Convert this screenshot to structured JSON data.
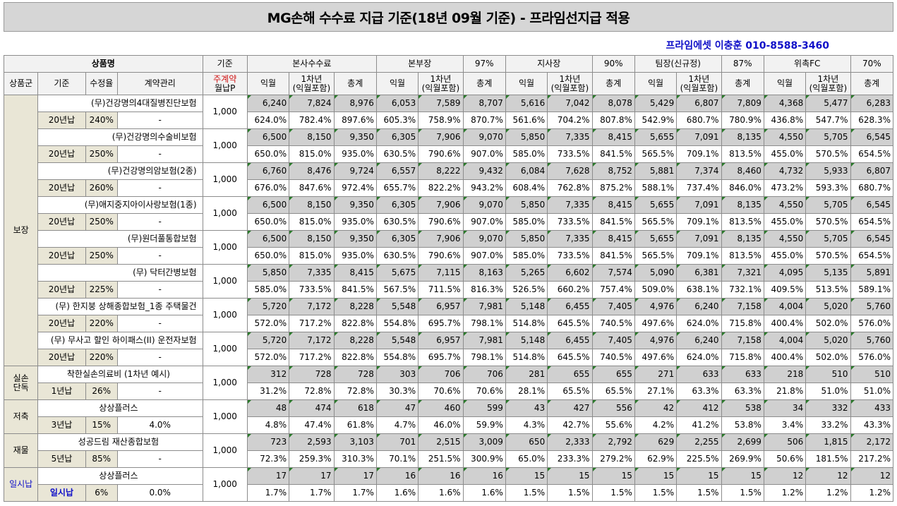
{
  "title": "MG손해 수수료 지급 기준(18년 09월 기준) - 프라임선지급 적용",
  "contact": "프라임에셋 이충훈 010-8588-3460",
  "header": {
    "product_name": "상품명",
    "basis": "기준",
    "hq": "본사수수료",
    "div": "본부장",
    "div_pct": "97%",
    "branch": "지사장",
    "branch_pct": "90%",
    "team": "팀장(신규정)",
    "team_pct": "87%",
    "fc": "위촉FC",
    "fc_pct": "70%",
    "group": "상품군",
    "standard": "기준",
    "rate": "수정율",
    "contract": "계약관리",
    "weekly": "주계약",
    "monthly_p": "월납P",
    "next_month": "익월",
    "first_year": "1차년",
    "incl": "(익월포함)",
    "total": "총계"
  },
  "groups": [
    {
      "name": "보장",
      "name_color": "#000000",
      "products": [
        {
          "name": "(무)건강명의4대질병진단보험",
          "align": "right",
          "term": "20년납",
          "rate": "240%",
          "mgmt": "-",
          "base": "1,000",
          "amounts": [
            "6,240",
            "7,824",
            "8,976",
            "6,053",
            "7,589",
            "8,707",
            "5,616",
            "7,042",
            "8,078",
            "5,429",
            "6,807",
            "7,809",
            "4,368",
            "5,477",
            "6,283"
          ],
          "pcts": [
            "624.0%",
            "782.4%",
            "897.6%",
            "605.3%",
            "758.9%",
            "870.7%",
            "561.6%",
            "704.2%",
            "807.8%",
            "542.9%",
            "680.7%",
            "780.9%",
            "436.8%",
            "547.7%",
            "628.3%"
          ]
        },
        {
          "name": "(무)건강명의수술비보험",
          "align": "right",
          "term": "20년납",
          "rate": "250%",
          "mgmt": "-",
          "base": "1,000",
          "amounts": [
            "6,500",
            "8,150",
            "9,350",
            "6,305",
            "7,906",
            "9,070",
            "5,850",
            "7,335",
            "8,415",
            "5,655",
            "7,091",
            "8,135",
            "4,550",
            "5,705",
            "6,545"
          ],
          "pcts": [
            "650.0%",
            "815.0%",
            "935.0%",
            "630.5%",
            "790.6%",
            "907.0%",
            "585.0%",
            "733.5%",
            "841.5%",
            "565.5%",
            "709.1%",
            "813.5%",
            "455.0%",
            "570.5%",
            "654.5%"
          ]
        },
        {
          "name": "(무)건강명의암보험(2종)",
          "align": "right",
          "term": "20년납",
          "rate": "260%",
          "mgmt": "-",
          "base": "1,000",
          "amounts": [
            "6,760",
            "8,476",
            "9,724",
            "6,557",
            "8,222",
            "9,432",
            "6,084",
            "7,628",
            "8,752",
            "5,881",
            "7,374",
            "8,460",
            "4,732",
            "5,933",
            "6,807"
          ],
          "pcts": [
            "676.0%",
            "847.6%",
            "972.4%",
            "655.7%",
            "822.2%",
            "943.2%",
            "608.4%",
            "762.8%",
            "875.2%",
            "588.1%",
            "737.4%",
            "846.0%",
            "473.2%",
            "593.3%",
            "680.7%"
          ]
        },
        {
          "name": "(무)애지중지아이사랑보험(1종)",
          "align": "right",
          "term": "20년납",
          "rate": "250%",
          "mgmt": "-",
          "base": "1,000",
          "amounts": [
            "6,500",
            "8,150",
            "9,350",
            "6,305",
            "7,906",
            "9,070",
            "5,850",
            "7,335",
            "8,415",
            "5,655",
            "7,091",
            "8,135",
            "4,550",
            "5,705",
            "6,545"
          ],
          "pcts": [
            "650.0%",
            "815.0%",
            "935.0%",
            "630.5%",
            "790.6%",
            "907.0%",
            "585.0%",
            "733.5%",
            "841.5%",
            "565.5%",
            "709.1%",
            "813.5%",
            "455.0%",
            "570.5%",
            "654.5%"
          ]
        },
        {
          "name": "(무)원더풀통합보험",
          "align": "right",
          "term": "20년납",
          "rate": "250%",
          "mgmt": "-",
          "base": "1,000",
          "amounts": [
            "6,500",
            "8,150",
            "9,350",
            "6,305",
            "7,906",
            "9,070",
            "5,850",
            "7,335",
            "8,415",
            "5,655",
            "7,091",
            "8,135",
            "4,550",
            "5,705",
            "6,545"
          ],
          "pcts": [
            "650.0%",
            "815.0%",
            "935.0%",
            "630.5%",
            "790.6%",
            "907.0%",
            "585.0%",
            "733.5%",
            "841.5%",
            "565.5%",
            "709.1%",
            "813.5%",
            "455.0%",
            "570.5%",
            "654.5%"
          ]
        },
        {
          "name": "(무) 닥터간병보험",
          "align": "right",
          "term": "20년납",
          "rate": "225%",
          "mgmt": "-",
          "base": "1,000",
          "amounts": [
            "5,850",
            "7,335",
            "8,415",
            "5,675",
            "7,115",
            "8,163",
            "5,265",
            "6,602",
            "7,574",
            "5,090",
            "6,381",
            "7,321",
            "4,095",
            "5,135",
            "5,891"
          ],
          "pcts": [
            "585.0%",
            "733.5%",
            "841.5%",
            "567.5%",
            "711.5%",
            "816.3%",
            "526.5%",
            "660.2%",
            "757.4%",
            "509.0%",
            "638.1%",
            "732.1%",
            "409.5%",
            "513.5%",
            "589.1%"
          ]
        },
        {
          "name": "(무) 한지붕 상해종합보험_1종 주택물건",
          "align": "right",
          "term": "20년납",
          "rate": "220%",
          "mgmt": "-",
          "base": "1,000",
          "amounts": [
            "5,720",
            "7,172",
            "8,228",
            "5,548",
            "6,957",
            "7,981",
            "5,148",
            "6,455",
            "7,405",
            "4,976",
            "6,240",
            "7,158",
            "4,004",
            "5,020",
            "5,760"
          ],
          "pcts": [
            "572.0%",
            "717.2%",
            "822.8%",
            "554.8%",
            "695.7%",
            "798.1%",
            "514.8%",
            "645.5%",
            "740.5%",
            "497.6%",
            "624.0%",
            "715.8%",
            "400.4%",
            "502.0%",
            "576.0%"
          ]
        },
        {
          "name": "(무) 무사고 할인 하이패스(II) 운전자보험",
          "align": "right",
          "term": "20년납",
          "rate": "220%",
          "mgmt": "-",
          "base": "1,000",
          "amounts": [
            "5,720",
            "7,172",
            "8,228",
            "5,548",
            "6,957",
            "7,981",
            "5,148",
            "6,455",
            "7,405",
            "4,976",
            "6,240",
            "7,158",
            "4,004",
            "5,020",
            "5,760"
          ],
          "pcts": [
            "572.0%",
            "717.2%",
            "822.8%",
            "554.8%",
            "695.7%",
            "798.1%",
            "514.8%",
            "645.5%",
            "740.5%",
            "497.6%",
            "624.0%",
            "715.8%",
            "400.4%",
            "502.0%",
            "576.0%"
          ]
        }
      ]
    },
    {
      "name": "실손\n단독",
      "name_color": "#000000",
      "products": [
        {
          "name": "착한실손의료비 (1차년 예시)",
          "align": "center",
          "term": "1년납",
          "rate": "26%",
          "mgmt": "-",
          "base": "1,000",
          "amounts": [
            "312",
            "728",
            "728",
            "303",
            "706",
            "706",
            "281",
            "655",
            "655",
            "271",
            "633",
            "633",
            "218",
            "510",
            "510"
          ],
          "pcts": [
            "31.2%",
            "72.8%",
            "72.8%",
            "30.3%",
            "70.6%",
            "70.6%",
            "28.1%",
            "65.5%",
            "65.5%",
            "27.1%",
            "63.3%",
            "63.3%",
            "21.8%",
            "51.0%",
            "51.0%"
          ]
        }
      ]
    },
    {
      "name": "저축",
      "name_color": "#000000",
      "products": [
        {
          "name": "상상플러스",
          "align": "center",
          "term": "3년납",
          "rate": "15%",
          "mgmt": "4.0%",
          "base": "1,000",
          "amounts": [
            "48",
            "474",
            "618",
            "47",
            "460",
            "599",
            "43",
            "427",
            "556",
            "42",
            "412",
            "538",
            "34",
            "332",
            "433"
          ],
          "pcts": [
            "4.8%",
            "47.4%",
            "61.8%",
            "4.7%",
            "46.0%",
            "59.9%",
            "4.3%",
            "42.7%",
            "55.6%",
            "4.2%",
            "41.2%",
            "53.8%",
            "3.4%",
            "33.2%",
            "43.3%"
          ]
        }
      ]
    },
    {
      "name": "재물",
      "name_color": "#000000",
      "products": [
        {
          "name": "성공드림 재산종합보험",
          "align": "center",
          "term": "5년납",
          "rate": "85%",
          "mgmt": "-",
          "base": "1,000",
          "amounts": [
            "723",
            "2,593",
            "3,103",
            "701",
            "2,515",
            "3,009",
            "650",
            "2,333",
            "2,792",
            "629",
            "2,255",
            "2,699",
            "506",
            "1,815",
            "2,172"
          ],
          "pcts": [
            "72.3%",
            "259.3%",
            "310.3%",
            "70.1%",
            "251.5%",
            "300.9%",
            "65.0%",
            "233.3%",
            "279.2%",
            "62.9%",
            "225.5%",
            "269.9%",
            "50.6%",
            "181.5%",
            "217.2%"
          ]
        }
      ]
    },
    {
      "name": "일시납",
      "name_color": "#1010c8",
      "term_color": "#1010c8",
      "products": [
        {
          "name": "상상플러스",
          "align": "center",
          "term": "일시납",
          "rate": "6%",
          "mgmt": "0.0%",
          "base": "1,000",
          "amounts": [
            "17",
            "17",
            "17",
            "16",
            "16",
            "16",
            "15",
            "15",
            "15",
            "15",
            "15",
            "15",
            "12",
            "12",
            "12"
          ],
          "pcts": [
            "1.7%",
            "1.7%",
            "1.7%",
            "1.6%",
            "1.6%",
            "1.6%",
            "1.5%",
            "1.5%",
            "1.5%",
            "1.5%",
            "1.5%",
            "1.5%",
            "1.2%",
            "1.2%",
            "1.2%"
          ]
        }
      ]
    }
  ]
}
